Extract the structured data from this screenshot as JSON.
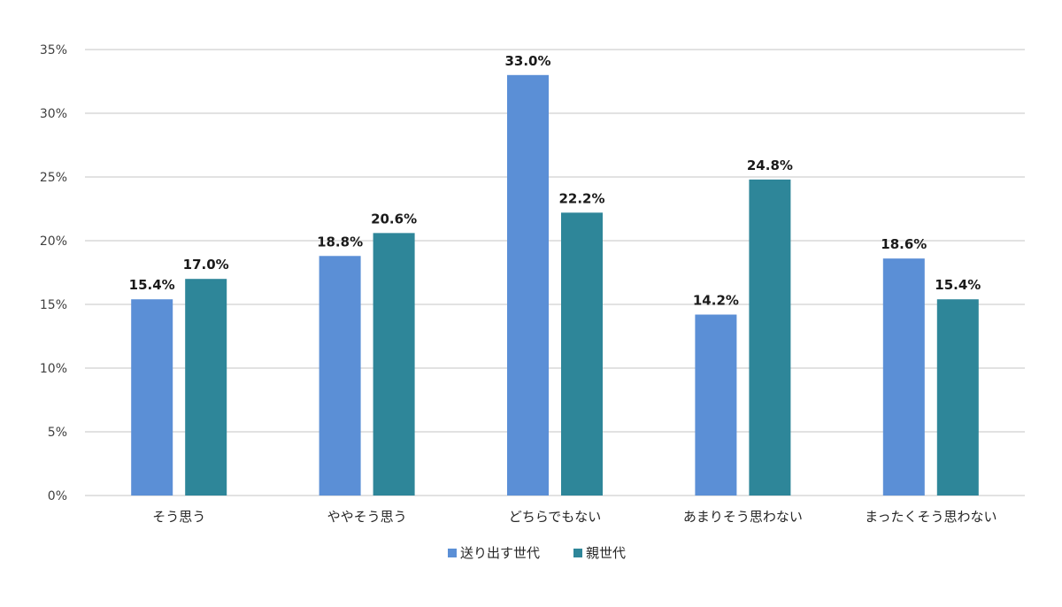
{
  "chart_data": {
    "type": "bar",
    "categories": [
      "そう思う",
      "ややそう思う",
      "どちらでもない",
      "あまりそう思わない",
      "まったくそう思わない"
    ],
    "series": [
      {
        "name": "送り出す世代",
        "values": [
          15.4,
          18.8,
          33.0,
          14.2,
          18.6
        ],
        "color": "#5B8FD6"
      },
      {
        "name": "親世代",
        "values": [
          17.0,
          20.6,
          22.2,
          24.8,
          15.4
        ],
        "color": "#2E8699"
      }
    ],
    "data_labels": [
      [
        "15.4%",
        "18.8%",
        "33.0%",
        "14.2%",
        "18.6%"
      ],
      [
        "17.0%",
        "20.6%",
        "22.2%",
        "24.8%",
        "15.4%"
      ]
    ],
    "y_ticks": [
      "0%",
      "5%",
      "10%",
      "15%",
      "20%",
      "25%",
      "30%",
      "35%"
    ],
    "ylim": [
      0,
      35
    ],
    "y_step": 5,
    "grid": true,
    "legend_position": "bottom",
    "gridline_color": "#d9d9d9"
  }
}
